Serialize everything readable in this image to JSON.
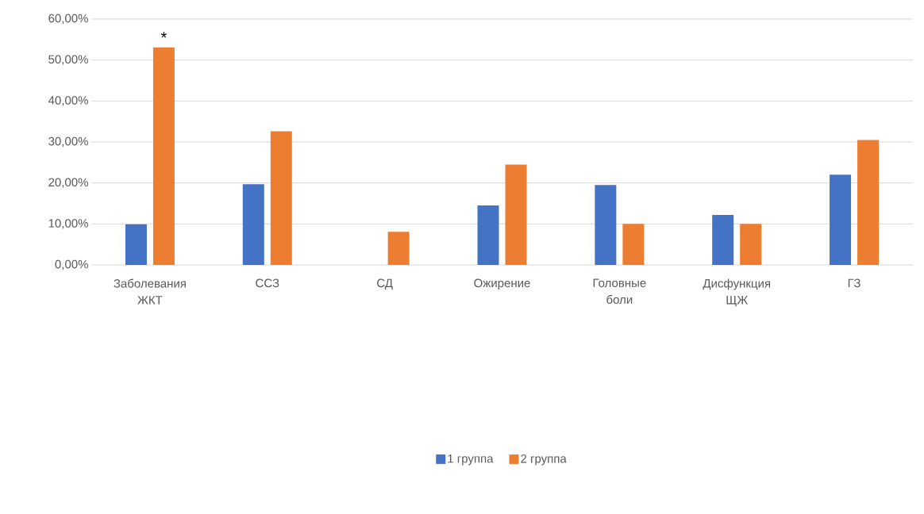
{
  "chart_data": {
    "type": "bar",
    "categories": [
      "Заболевания ЖКТ",
      "ССЗ",
      "СД",
      "Ожирение",
      "Головные боли",
      "Дисфункция ЩЖ",
      "ГЗ"
    ],
    "series": [
      {
        "name": "1 группа",
        "color": "#4472c4",
        "values": [
          9.9,
          19.7,
          0,
          14.5,
          19.5,
          12.2,
          22.0
        ]
      },
      {
        "name": "2 группа",
        "color": "#ed7d31",
        "values": [
          53.1,
          32.6,
          8.1,
          24.5,
          10.0,
          10.0,
          30.5
        ]
      }
    ],
    "ylim": [
      0,
      60
    ],
    "yticks": [
      {
        "value": 0,
        "label": "0,00%"
      },
      {
        "value": 10,
        "label": "10,00%"
      },
      {
        "value": 20,
        "label": "20,00%"
      },
      {
        "value": 30,
        "label": "30,00%"
      },
      {
        "value": 40,
        "label": "40,00%"
      },
      {
        "value": 50,
        "label": "50,00%"
      },
      {
        "value": 60,
        "label": "60,00%"
      }
    ],
    "grid": "y",
    "legend": "bottom",
    "annotations": [
      {
        "text": "*",
        "x": "Заболевания ЖКТ",
        "y": 53.1
      }
    ]
  }
}
